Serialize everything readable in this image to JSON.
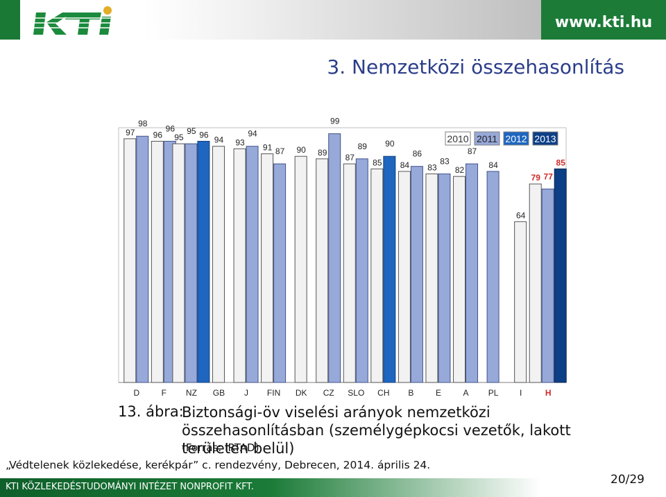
{
  "header": {
    "logo_text": "KTI",
    "url": "www.kti.hu",
    "slide_title": "3. Nemzetközi összehasonlítás"
  },
  "colors": {
    "y2010": "#f2f2f2",
    "y2011": "#97a9d8",
    "y2012": "#1e66c0",
    "y2013": "#0c3f86",
    "accent_green": "#1b7b37",
    "highlight_red": "#d02a2a"
  },
  "chart_data": {
    "type": "bar",
    "categories": [
      "D",
      "F",
      "NZ",
      "GB",
      "J",
      "FIN",
      "DK",
      "CZ",
      "SLO",
      "CH",
      "B",
      "E",
      "A",
      "PL",
      "I",
      "H"
    ],
    "highlight_category": "H",
    "series": [
      {
        "name": "2010",
        "values": [
          97,
          96,
          95,
          94,
          93,
          91,
          90,
          89,
          87,
          85,
          84,
          83,
          82,
          null,
          64,
          79
        ]
      },
      {
        "name": "2011",
        "values": [
          98,
          96,
          95,
          null,
          94,
          87,
          null,
          99,
          89,
          null,
          86,
          83,
          87,
          84,
          null,
          77
        ]
      },
      {
        "name": "2012",
        "values": [
          null,
          null,
          96,
          null,
          null,
          null,
          null,
          null,
          null,
          90,
          null,
          null,
          null,
          null,
          null,
          null
        ]
      },
      {
        "name": "2013",
        "values": [
          null,
          null,
          null,
          null,
          null,
          null,
          null,
          null,
          null,
          null,
          null,
          null,
          null,
          null,
          null,
          85
        ]
      }
    ],
    "ylim": [
      0,
      100
    ],
    "grid": false,
    "legend_position": "top-right"
  },
  "caption": {
    "figure_number": "13. ábra:",
    "text": "Biztonsági-öv viselési arányok nemzetközi összehasonlításban (személygépkocsi vezetők, lakott területen belül)",
    "source": "(Forrás: IRTAD)"
  },
  "footer": {
    "event": "„Védtelenek közlekedése, kerékpár” c. rendezvény, Debrecen, 2014. április 24.",
    "institute": "KTI KÖZLEKEDÉSTUDOMÁNYI INTÉZET NONPROFIT KFT.",
    "page": "20/29"
  }
}
